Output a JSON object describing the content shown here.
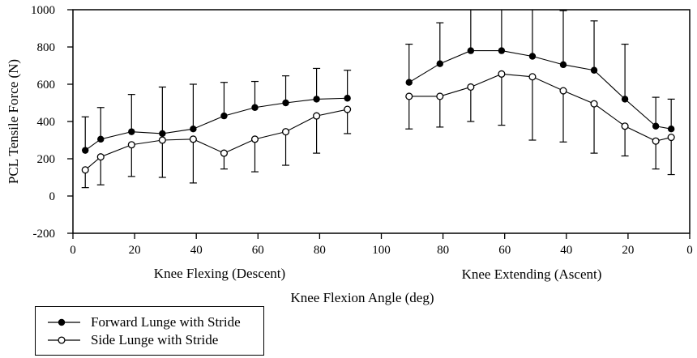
{
  "chart_data": {
    "type": "line",
    "title": "",
    "ylabel": "PCL Tensile Force (N)",
    "xlabel": "Knee Flexion Angle (deg)",
    "phase_labels": {
      "descent": "Knee Flexing (Descent)",
      "ascent": "Knee Extending (Ascent)"
    },
    "ylim": [
      -200,
      1000
    ],
    "yticks": [
      -200,
      0,
      200,
      400,
      600,
      800,
      1000
    ],
    "x_axis": {
      "ticks_u": [
        0,
        20,
        40,
        60,
        80,
        100,
        120,
        140,
        160,
        180,
        200
      ],
      "tick_labels": [
        "0",
        "20",
        "40",
        "60",
        "80",
        "100",
        "80",
        "60",
        "40",
        "20",
        "0"
      ]
    },
    "grid": "off",
    "error_bar_style": "one-sided",
    "series": [
      {
        "name": "Forward Lunge with Stride",
        "marker": "filled-circle",
        "error_direction": "up",
        "descent": [
          {
            "angle": 4,
            "force": 245,
            "err": 425
          },
          {
            "angle": 9,
            "force": 305,
            "err": 475
          },
          {
            "angle": 19,
            "force": 345,
            "err": 545
          },
          {
            "angle": 29,
            "force": 335,
            "err": 585
          },
          {
            "angle": 39,
            "force": 360,
            "err": 600
          },
          {
            "angle": 49,
            "force": 430,
            "err": 610
          },
          {
            "angle": 59,
            "force": 475,
            "err": 615
          },
          {
            "angle": 69,
            "force": 500,
            "err": 645
          },
          {
            "angle": 79,
            "force": 520,
            "err": 685
          },
          {
            "angle": 89,
            "force": 525,
            "err": 675
          }
        ],
        "ascent": [
          {
            "angle": 91,
            "force": 610,
            "err": 815
          },
          {
            "angle": 81,
            "force": 710,
            "err": 930
          },
          {
            "angle": 71,
            "force": 780,
            "err": 1000
          },
          {
            "angle": 61,
            "force": 780,
            "err": 1000
          },
          {
            "angle": 51,
            "force": 750,
            "err": 1000
          },
          {
            "angle": 41,
            "force": 705,
            "err": 995
          },
          {
            "angle": 31,
            "force": 675,
            "err": 940
          },
          {
            "angle": 21,
            "force": 520,
            "err": 815
          },
          {
            "angle": 11,
            "force": 375,
            "err": 530
          },
          {
            "angle": 6,
            "force": 360,
            "err": 520
          }
        ]
      },
      {
        "name": "Side Lunge with Stride",
        "marker": "open-circle",
        "error_direction": "down",
        "descent": [
          {
            "angle": 4,
            "force": 140,
            "err": 45
          },
          {
            "angle": 9,
            "force": 210,
            "err": 60
          },
          {
            "angle": 19,
            "force": 275,
            "err": 105
          },
          {
            "angle": 29,
            "force": 300,
            "err": 100
          },
          {
            "angle": 39,
            "force": 305,
            "err": 70
          },
          {
            "angle": 49,
            "force": 230,
            "err": 145
          },
          {
            "angle": 59,
            "force": 305,
            "err": 130
          },
          {
            "angle": 69,
            "force": 345,
            "err": 165
          },
          {
            "angle": 79,
            "force": 430,
            "err": 230
          },
          {
            "angle": 89,
            "force": 465,
            "err": 335
          }
        ],
        "ascent": [
          {
            "angle": 91,
            "force": 535,
            "err": 360
          },
          {
            "angle": 81,
            "force": 535,
            "err": 370
          },
          {
            "angle": 71,
            "force": 585,
            "err": 400
          },
          {
            "angle": 61,
            "force": 655,
            "err": 380
          },
          {
            "angle": 51,
            "force": 640,
            "err": 300
          },
          {
            "angle": 41,
            "force": 565,
            "err": 290
          },
          {
            "angle": 31,
            "force": 495,
            "err": 230
          },
          {
            "angle": 21,
            "force": 375,
            "err": 215
          },
          {
            "angle": 11,
            "force": 295,
            "err": 145
          },
          {
            "angle": 6,
            "force": 315,
            "err": 115
          }
        ]
      }
    ],
    "legend": {
      "position": "bottom-left"
    },
    "colors": {
      "foreground": "#000000",
      "background": "#ffffff"
    }
  }
}
